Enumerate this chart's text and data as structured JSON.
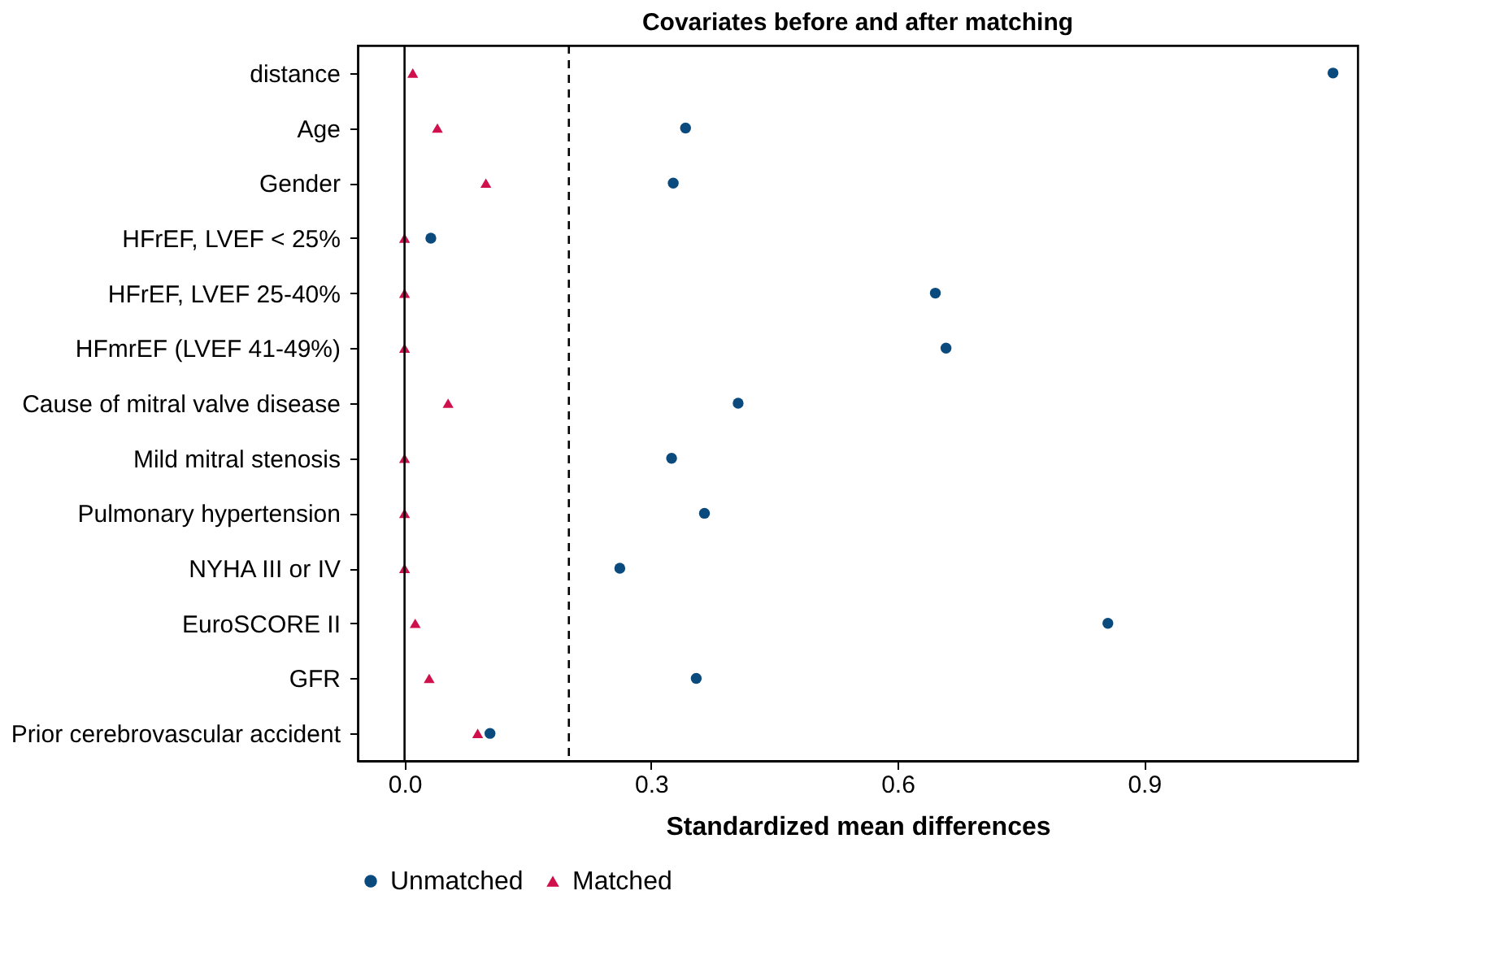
{
  "chart_data": {
    "type": "scatter",
    "title": "Covariates before and after matching",
    "xlabel": "Standardized mean differences",
    "categories": [
      "distance",
      "Age",
      "Gender",
      "HFrEF, LVEF < 25%",
      "HFrEF, LVEF 25-40%",
      "HFmrEF (LVEF 41-49%)",
      "Cause of mitral valve disease",
      "Mild mitral stenosis",
      "Pulmonary hypertension",
      "NYHA III or IV",
      "EuroSCORE II",
      "GFR",
      "Prior cerebrovascular accident"
    ],
    "series": [
      {
        "name": "Unmatched",
        "color": "#0b4a7d",
        "marker": "circle",
        "values": [
          1.13,
          0.342,
          0.327,
          0.032,
          0.646,
          0.659,
          0.406,
          0.325,
          0.365,
          0.262,
          0.856,
          0.355,
          0.104
        ]
      },
      {
        "name": "Matched",
        "color": "#d0104c",
        "marker": "triangle",
        "values": [
          0.01,
          0.04,
          0.099,
          0.0,
          0.0,
          0.0,
          0.053,
          0.0,
          0.0,
          0.0,
          0.013,
          0.03,
          0.089
        ]
      }
    ],
    "xlim": [
      -0.057,
      1.16
    ],
    "xticks": [
      {
        "value": 0,
        "label": "0.0"
      },
      {
        "value": 0.3,
        "label": "0.3"
      },
      {
        "value": 0.6,
        "label": "0.6"
      },
      {
        "value": 0.9,
        "label": "0.9"
      }
    ],
    "ref_lines": [
      {
        "axis": "x",
        "value": 0,
        "color": "#000000",
        "line_style": "solid"
      },
      {
        "axis": "x",
        "value": 0.2,
        "color": "#000000",
        "line_style": "dashed"
      }
    ],
    "legend": "bottom",
    "grid": false,
    "orientation": "horizontal"
  }
}
